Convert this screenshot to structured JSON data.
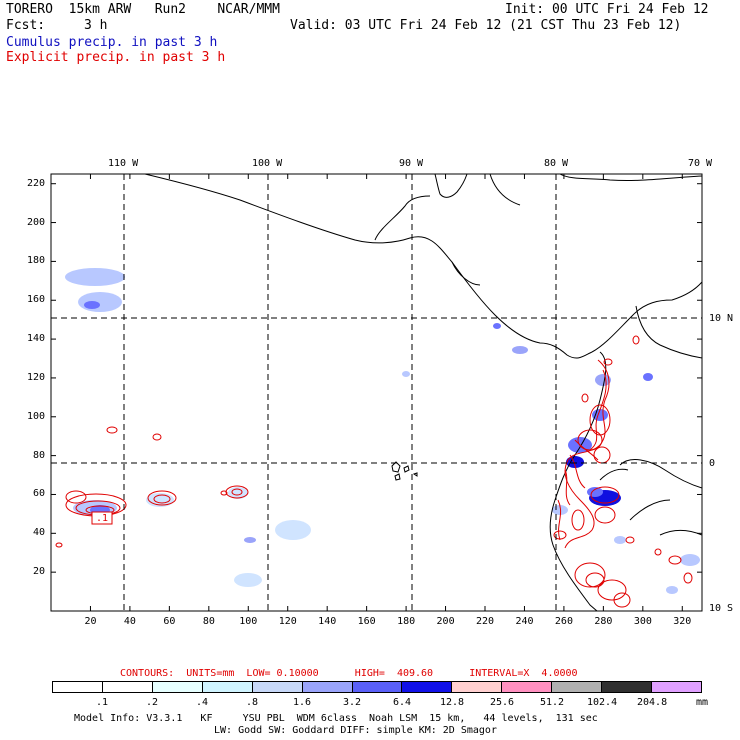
{
  "header": {
    "model": "TORERO  15km ARW   Run2    NCAR/MMM",
    "init": "Init: 00 UTC Fri 24 Feb 12",
    "fcst_label": "Fcst:",
    "fcst_value": "3 h",
    "valid": "Valid: 03 UTC Fri 24 Feb 12 (21 CST Thu 23 Feb 12)",
    "field1": "Cumulus precip. in past 3 h",
    "field2": "Explicit precip. in past 3 h"
  },
  "map": {
    "lon_labels": [
      "110 W",
      "100 W",
      "90 W",
      "80 W",
      "70 W"
    ],
    "lat_labels": [
      "10 N",
      "0",
      "10 S"
    ],
    "x_ticks": [
      "20",
      "40",
      "60",
      "80",
      "100",
      "120",
      "140",
      "160",
      "180",
      "200",
      "220",
      "240",
      "260",
      "280",
      "300",
      "320"
    ],
    "y_ticks": [
      "20",
      "40",
      "60",
      "80",
      "100",
      "120",
      "140",
      "160",
      "180",
      "200",
      "220"
    ],
    "xlim": [
      0,
      330
    ],
    "ylim": [
      0,
      225
    ],
    "box_label": ".1",
    "colors": {
      "explicit": "#e00000",
      "cumulus_light": "#b8c8ff",
      "cumulus_mid": "#6a72ff",
      "cumulus_dark": "#1010e0",
      "coast": "#000000"
    }
  },
  "contour_info": {
    "text": "CONTOURS:  UNITS=mm  LOW= 0.10000      HIGH=  409.60      INTERVAL=X  4.0000"
  },
  "colorbar": {
    "labels": [
      ".1",
      ".2",
      ".4",
      ".8",
      "1.6",
      "3.2",
      "6.4",
      "12.8",
      "25.6",
      "51.2",
      "102.4",
      "204.8"
    ],
    "unit": "mm",
    "colors": [
      "#ffffff",
      "#ffffff",
      "#e6ffff",
      "#d0f4ff",
      "#c7d8f8",
      "#9aa4fa",
      "#5a60f8",
      "#1010e8",
      "#ffd0d0",
      "#ff90c0",
      "#b0b0b0",
      "#303030",
      "#e0a0ff"
    ]
  },
  "footer": {
    "line1": "Model Info: V3.3.1   KF     YSU PBL  WDM 6class  Noah LSM  15 km,   44 levels,  131 sec",
    "line2": "LW: Godd SW: Goddard DIFF: simple KM: 2D Smagor"
  }
}
